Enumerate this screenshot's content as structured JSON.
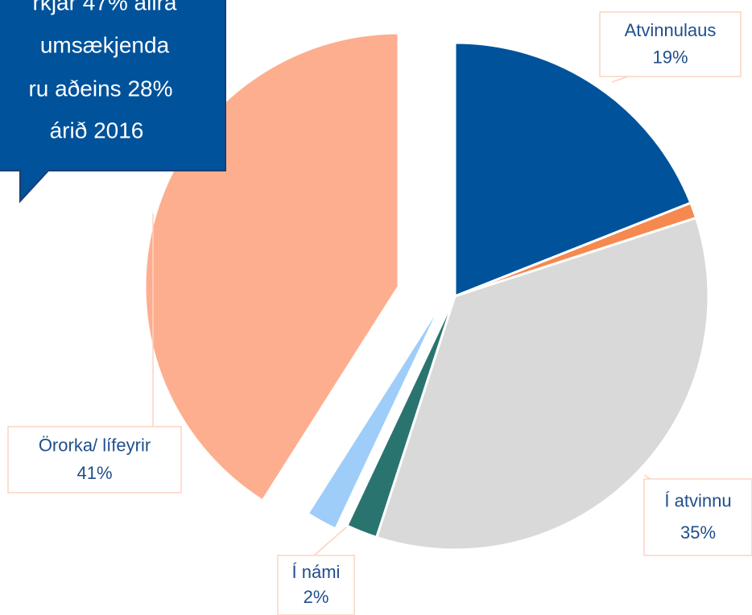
{
  "chart_data": {
    "type": "pie",
    "categories": [
      "Atvinnulaus",
      null,
      "Í atvinnu",
      "Í námi",
      null,
      "Örorka/ lífeyrir"
    ],
    "values": [
      19,
      1,
      35,
      2,
      2,
      41
    ],
    "value_labels": [
      "19%",
      null,
      "35%",
      "2%",
      null,
      "41%"
    ],
    "colors": [
      "#00529b",
      "#f5894f",
      "#d9d9d9",
      "#2a7470",
      "#9fcdfa",
      "#fdae8f"
    ],
    "annotation": [
      "rkjar 47% allra",
      "umsækjenda",
      "ru aðeins 28%",
      "árið 2016"
    ]
  }
}
